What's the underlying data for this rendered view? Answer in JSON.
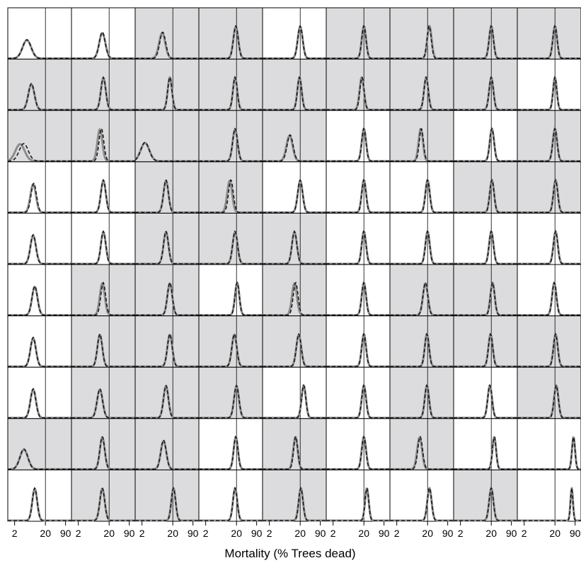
{
  "chart_data": {
    "type": "density-small-multiples",
    "xlabel": "Mortality (% Trees dead)",
    "xscale": "log",
    "xlim": [
      1.2,
      140
    ],
    "x_ticks": [
      2,
      20,
      90
    ],
    "x_tick_labels": [
      "2",
      "20",
      "90"
    ],
    "y_axis_visible": false,
    "grid_rows": 10,
    "grid_cols": 9,
    "reference_line_x": 20,
    "highlight_color": "#dcdcde",
    "series_styles": [
      {
        "style": "solid",
        "color": "#8c8c8c"
      },
      {
        "style": "dashed",
        "color": "#1a1a1a"
      }
    ],
    "panels": [
      [
        {
          "peak": 5,
          "width": 0.14,
          "shift": 0,
          "shaded": false
        },
        {
          "peak": 12,
          "width": 0.1,
          "shift": 0,
          "shaded": false
        },
        {
          "peak": 9,
          "width": 0.1,
          "shift": 0.02,
          "shaded": true
        },
        {
          "peak": 19,
          "width": 0.08,
          "shift": 0,
          "shaded": true
        },
        {
          "peak": 20,
          "width": 0.08,
          "shift": 0,
          "shaded": false
        },
        {
          "peak": 20,
          "width": 0.07,
          "shift": 0,
          "shaded": true
        },
        {
          "peak": 23,
          "width": 0.07,
          "shift": -0.01,
          "shaded": true
        },
        {
          "peak": 20,
          "width": 0.07,
          "shift": 0,
          "shaded": true
        },
        {
          "peak": 20,
          "width": 0.07,
          "shift": 0,
          "shaded": true
        }
      ],
      [
        {
          "peak": 7,
          "width": 0.1,
          "shift": 0,
          "shaded": true
        },
        {
          "peak": 13,
          "width": 0.08,
          "shift": 0,
          "shaded": true
        },
        {
          "peak": 16,
          "width": 0.07,
          "shift": 0,
          "shaded": true
        },
        {
          "peak": 18,
          "width": 0.07,
          "shift": 0,
          "shaded": true
        },
        {
          "peak": 19,
          "width": 0.07,
          "shift": 0,
          "shaded": true
        },
        {
          "peak": 17,
          "width": 0.07,
          "shift": 0.01,
          "shaded": true
        },
        {
          "peak": 18,
          "width": 0.07,
          "shift": 0,
          "shaded": true
        },
        {
          "peak": 20,
          "width": 0.07,
          "shift": 0,
          "shaded": true
        },
        {
          "peak": 20,
          "width": 0.06,
          "shift": 0,
          "shaded": false
        }
      ],
      [
        {
          "peak": 3,
          "width": 0.15,
          "shift": 0.12,
          "shaded": true
        },
        {
          "peak": 10,
          "width": 0.08,
          "shift": 0.05,
          "shaded": true
        },
        {
          "peak": 2.5,
          "width": 0.14,
          "shift": 0,
          "shaded": true
        },
        {
          "peak": 18,
          "width": 0.08,
          "shift": 0,
          "shaded": true
        },
        {
          "peak": 9,
          "width": 0.1,
          "shift": 0.02,
          "shaded": true
        },
        {
          "peak": 20,
          "width": 0.07,
          "shift": 0,
          "shaded": false
        },
        {
          "peak": 12,
          "width": 0.07,
          "shift": 0.02,
          "shaded": true
        },
        {
          "peak": 21,
          "width": 0.07,
          "shift": 0,
          "shaded": false
        },
        {
          "peak": 20,
          "width": 0.07,
          "shift": 0,
          "shaded": true
        }
      ],
      [
        {
          "peak": 8,
          "width": 0.09,
          "shift": 0.02,
          "shaded": false
        },
        {
          "peak": 13,
          "width": 0.08,
          "shift": 0,
          "shaded": false
        },
        {
          "peak": 12,
          "width": 0.08,
          "shift": 0,
          "shaded": true
        },
        {
          "peak": 12,
          "width": 0.08,
          "shift": 0.04,
          "shaded": true
        },
        {
          "peak": 20,
          "width": 0.08,
          "shift": 0,
          "shaded": false
        },
        {
          "peak": 20,
          "width": 0.07,
          "shift": 0,
          "shaded": false
        },
        {
          "peak": 20,
          "width": 0.07,
          "shift": 0,
          "shaded": false
        },
        {
          "peak": 21,
          "width": 0.07,
          "shift": 0,
          "shaded": true
        },
        {
          "peak": 21,
          "width": 0.07,
          "shift": 0,
          "shaded": true
        }
      ],
      [
        {
          "peak": 8,
          "width": 0.09,
          "shift": 0,
          "shaded": false
        },
        {
          "peak": 13,
          "width": 0.08,
          "shift": 0,
          "shaded": false
        },
        {
          "peak": 12,
          "width": 0.08,
          "shift": 0,
          "shaded": true
        },
        {
          "peak": 18,
          "width": 0.08,
          "shift": 0,
          "shaded": true
        },
        {
          "peak": 13,
          "width": 0.08,
          "shift": 0,
          "shaded": true
        },
        {
          "peak": 20,
          "width": 0.07,
          "shift": 0,
          "shaded": false
        },
        {
          "peak": 20,
          "width": 0.07,
          "shift": 0,
          "shaded": false
        },
        {
          "peak": 20,
          "width": 0.07,
          "shift": 0,
          "shaded": false
        },
        {
          "peak": 21,
          "width": 0.07,
          "shift": 0,
          "shaded": false
        }
      ],
      [
        {
          "peak": 9,
          "width": 0.09,
          "shift": 0,
          "shaded": false
        },
        {
          "peak": 12,
          "width": 0.08,
          "shift": 0.03,
          "shaded": true
        },
        {
          "peak": 16,
          "width": 0.08,
          "shift": 0,
          "shaded": true
        },
        {
          "peak": 21,
          "width": 0.07,
          "shift": 0,
          "shaded": false
        },
        {
          "peak": 13,
          "width": 0.08,
          "shift": 0.04,
          "shaded": true
        },
        {
          "peak": 20,
          "width": 0.07,
          "shift": 0,
          "shaded": false
        },
        {
          "peak": 17,
          "width": 0.08,
          "shift": 0,
          "shaded": true
        },
        {
          "peak": 22,
          "width": 0.07,
          "shift": 0,
          "shaded": true
        },
        {
          "peak": 19,
          "width": 0.07,
          "shift": 0,
          "shaded": false
        }
      ],
      [
        {
          "peak": 8,
          "width": 0.09,
          "shift": 0,
          "shaded": false
        },
        {
          "peak": 10,
          "width": 0.08,
          "shift": 0,
          "shaded": true
        },
        {
          "peak": 16,
          "width": 0.08,
          "shift": 0,
          "shaded": true
        },
        {
          "peak": 17,
          "width": 0.08,
          "shift": 0,
          "shaded": true
        },
        {
          "peak": 18,
          "width": 0.08,
          "shift": 0,
          "shaded": true
        },
        {
          "peak": 20,
          "width": 0.07,
          "shift": 0,
          "shaded": false
        },
        {
          "peak": 19,
          "width": 0.07,
          "shift": 0,
          "shaded": true
        },
        {
          "peak": 19,
          "width": 0.07,
          "shift": 0,
          "shaded": true
        },
        {
          "peak": 21,
          "width": 0.07,
          "shift": 0,
          "shaded": true
        }
      ],
      [
        {
          "peak": 8,
          "width": 0.09,
          "shift": 0,
          "shaded": false
        },
        {
          "peak": 10,
          "width": 0.09,
          "shift": 0,
          "shaded": true
        },
        {
          "peak": 12,
          "width": 0.08,
          "shift": 0,
          "shaded": true
        },
        {
          "peak": 20,
          "width": 0.08,
          "shift": 0,
          "shaded": true
        },
        {
          "peak": 26,
          "width": 0.07,
          "shift": 0,
          "shaded": false
        },
        {
          "peak": 20,
          "width": 0.07,
          "shift": 0,
          "shaded": false
        },
        {
          "peak": 19,
          "width": 0.07,
          "shift": 0,
          "shaded": true
        },
        {
          "peak": 18,
          "width": 0.07,
          "shift": 0,
          "shaded": false
        },
        {
          "peak": 22,
          "width": 0.07,
          "shift": 0,
          "shaded": true
        }
      ],
      [
        {
          "peak": 4,
          "width": 0.13,
          "shift": 0,
          "shaded": true
        },
        {
          "peak": 12,
          "width": 0.08,
          "shift": 0,
          "shaded": true
        },
        {
          "peak": 10,
          "width": 0.09,
          "shift": 0,
          "shaded": true
        },
        {
          "peak": 19,
          "width": 0.07,
          "shift": 0,
          "shaded": false
        },
        {
          "peak": 14,
          "width": 0.07,
          "shift": 0.01,
          "shaded": true
        },
        {
          "peak": 20,
          "width": 0.07,
          "shift": 0,
          "shaded": false
        },
        {
          "peak": 11,
          "width": 0.08,
          "shift": 0.02,
          "shaded": true
        },
        {
          "peak": 25,
          "width": 0.06,
          "shift": 0,
          "shaded": false
        },
        {
          "peak": 80,
          "width": 0.05,
          "shift": 0,
          "shaded": false
        }
      ],
      [
        {
          "peak": 9,
          "width": 0.08,
          "shift": 0,
          "shaded": false
        },
        {
          "peak": 12,
          "width": 0.08,
          "shift": 0,
          "shaded": true
        },
        {
          "peak": 21,
          "width": 0.07,
          "shift": 0,
          "shaded": true
        },
        {
          "peak": 18,
          "width": 0.07,
          "shift": 0,
          "shaded": false
        },
        {
          "peak": 21,
          "width": 0.07,
          "shift": 0,
          "shaded": true
        },
        {
          "peak": 25,
          "width": 0.06,
          "shift": 0,
          "shaded": false
        },
        {
          "peak": 23,
          "width": 0.07,
          "shift": 0,
          "shaded": false
        },
        {
          "peak": 20,
          "width": 0.07,
          "shift": 0,
          "shaded": true
        },
        {
          "peak": 70,
          "width": 0.04,
          "shift": 0,
          "shaded": false
        }
      ]
    ]
  }
}
